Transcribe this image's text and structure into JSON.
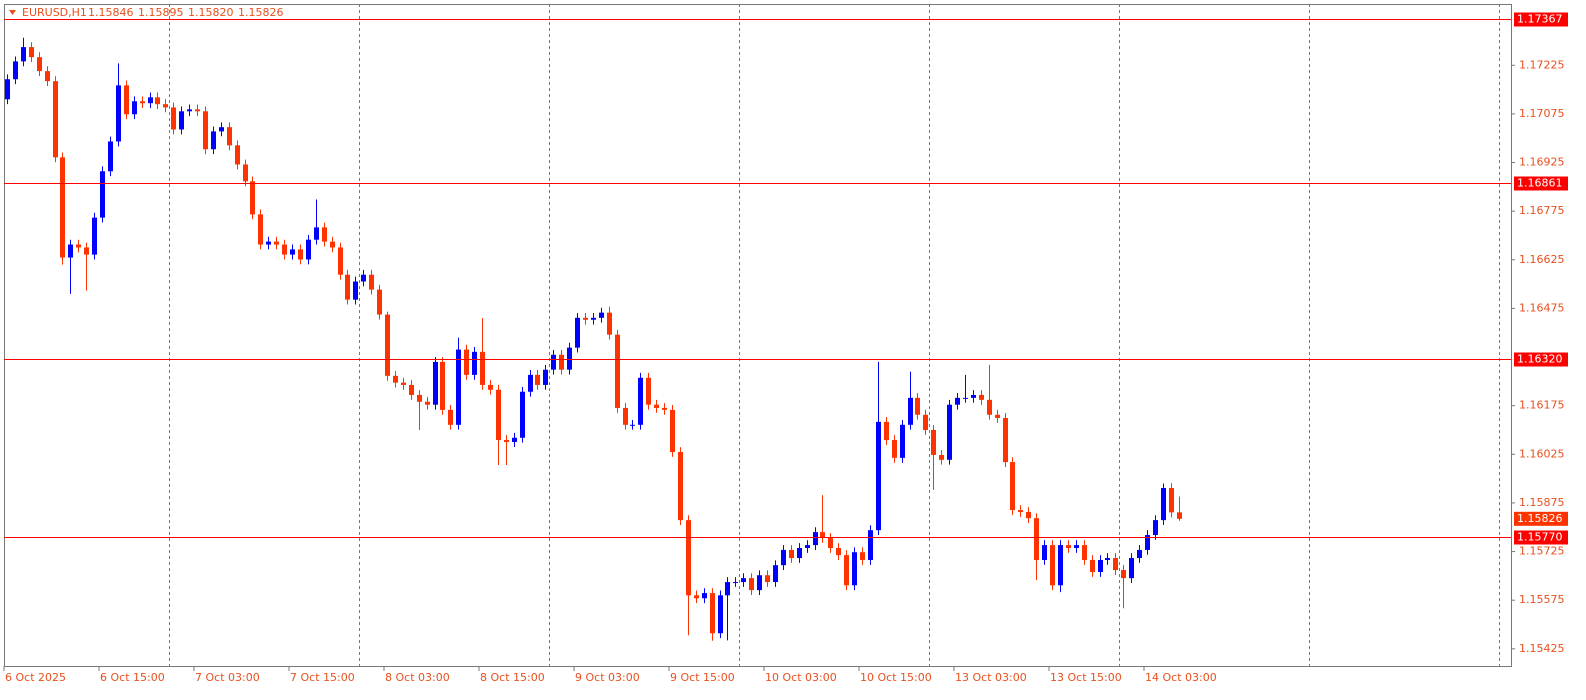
{
  "chart_data": {
    "type": "candlestick",
    "title": "EURUSD,H1",
    "title_values": [
      "1.15846",
      "1.15895",
      "1.15820",
      "1.15826"
    ],
    "up_color": "#0000ff",
    "down_color": "#ff3300",
    "level_color": "#ff0000",
    "ylim": [
      1.15372,
      1.17414
    ],
    "yticks": [
      1.17225,
      1.17075,
      1.16925,
      1.16775,
      1.16625,
      1.16475,
      1.16175,
      1.16025,
      1.15875,
      1.15725,
      1.15575,
      1.15425
    ],
    "levels": [
      1.17367,
      1.16861,
      {
        "value": 1.1632,
        "label": "1.16320"
      },
      {
        "value": 1.1577,
        "label": "1.15770"
      }
    ],
    "categories": [
      "6 Oct 2025",
      null,
      null,
      null,
      null,
      null,
      null,
      null,
      null,
      null,
      null,
      null,
      "6 Oct 15:00",
      null,
      null,
      null,
      null,
      null,
      null,
      null,
      null,
      null,
      null,
      null,
      "7 Oct 03:00",
      null,
      null,
      null,
      null,
      null,
      null,
      null,
      null,
      null,
      null,
      null,
      "7 Oct 15:00",
      null,
      null,
      null,
      null,
      null,
      null,
      null,
      null,
      null,
      null,
      null,
      "8 Oct 03:00",
      null,
      null,
      null,
      null,
      null,
      null,
      null,
      null,
      null,
      null,
      null,
      "8 Oct 15:00",
      null,
      null,
      null,
      null,
      null,
      null,
      null,
      null,
      null,
      null,
      null,
      "9 Oct 03:00",
      null,
      null,
      null,
      null,
      null,
      null,
      null,
      null,
      null,
      null,
      null,
      "9 Oct 15:00",
      null,
      null,
      null,
      null,
      null,
      null,
      null,
      null,
      null,
      null,
      null,
      "10 Oct 03:00",
      null,
      null,
      null,
      null,
      null,
      null,
      null,
      null,
      null,
      null,
      null,
      "10 Oct 15:00",
      null,
      null,
      null,
      null,
      null,
      null,
      null,
      null,
      null,
      null,
      null,
      "13 Oct 03:00",
      null,
      null,
      null,
      null,
      null,
      null,
      null,
      null,
      null,
      null,
      null,
      "13 Oct 15:00",
      null,
      null,
      null,
      null,
      null,
      null,
      null,
      null,
      null,
      null,
      null,
      "14 Oct 03:00",
      null,
      null,
      null,
      null
    ],
    "open": [
      1.1712,
      1.17182,
      1.17237,
      1.17281,
      1.1725,
      1.17207,
      1.17176,
      1.16941,
      1.16632,
      1.16672,
      1.16663,
      1.16641,
      1.16755,
      1.16898,
      1.1699,
      1.17163,
      1.17074,
      1.17114,
      1.17108,
      1.17126,
      1.17105,
      1.17095,
      1.17027,
      1.17083,
      1.17089,
      1.17083,
      1.16966,
      1.17021,
      1.17034,
      1.16978,
      1.16919,
      1.16867,
      1.16765,
      1.16672,
      1.16681,
      1.16672,
      1.16641,
      1.16657,
      1.16626,
      1.16687,
      1.16725,
      1.16681,
      1.16663,
      1.16579,
      1.16502,
      1.16558,
      1.16579,
      1.16533,
      1.16456,
      1.16267,
      1.16246,
      1.16239,
      1.16208,
      1.16187,
      1.16178,
      1.1631,
      1.16162,
      1.16116,
      1.16348,
      1.1627,
      1.16341,
      1.16239,
      1.16224,
      1.16069,
      1.16063,
      1.16076,
      1.16218,
      1.1627,
      1.16239,
      1.16286,
      1.16332,
      1.16286,
      1.16354,
      1.16446,
      1.1644,
      1.16446,
      1.16462,
      1.16394,
      1.16168,
      1.16116,
      1.16116,
      1.16261,
      1.16178,
      1.16168,
      1.16162,
      1.16032,
      1.15822,
      1.1559,
      1.15581,
      1.15597,
      1.15473,
      1.1559,
      1.15631,
      1.15631,
      1.15643,
      1.15606,
      1.15652,
      1.15631,
      1.15683,
      1.1573,
      1.15705,
      1.15736,
      1.15745,
      1.15785,
      1.15767,
      1.15736,
      1.15714,
      1.15621,
      1.15723,
      1.15699,
      1.15791,
      1.16125,
      1.16069,
      1.16014,
      1.16116,
      1.16199,
      1.16147,
      1.161,
      1.16023,
      1.16008,
      1.16178,
      1.16199,
      1.16199,
      1.16208,
      1.16193,
      1.16147,
      1.16137,
      1.16001,
      1.15853,
      1.15847,
      1.15828,
      1.15699,
      1.15745,
      1.15621,
      1.15745,
      1.15736,
      1.15745,
      1.15699,
      1.15662,
      1.15699,
      1.15705,
      1.15668,
      1.15643,
      1.15705,
      1.1573,
      1.15776,
      1.15822,
      1.15921,
      1.15846
    ],
    "high": [
      1.17197,
      1.17252,
      1.1731,
      1.17296,
      1.17265,
      1.17222,
      1.17191,
      1.16956,
      1.16687,
      1.16687,
      1.16678,
      1.1677,
      1.16913,
      1.17005,
      1.17231,
      1.17178,
      1.17129,
      1.17129,
      1.17141,
      1.17141,
      1.1712,
      1.1711,
      1.17098,
      1.17104,
      1.17104,
      1.17098,
      1.17036,
      1.17049,
      1.17049,
      1.16993,
      1.16934,
      1.16882,
      1.1678,
      1.16696,
      1.16696,
      1.16687,
      1.16672,
      1.16672,
      1.16702,
      1.16811,
      1.1674,
      1.16696,
      1.16678,
      1.16594,
      1.16573,
      1.16594,
      1.16594,
      1.16548,
      1.16465,
      1.16282,
      1.16261,
      1.16254,
      1.16223,
      1.16202,
      1.16325,
      1.16325,
      1.16177,
      1.16385,
      1.16363,
      1.16356,
      1.16445,
      1.16254,
      1.16239,
      1.16084,
      1.16091,
      1.16233,
      1.16285,
      1.16285,
      1.16301,
      1.16347,
      1.16347,
      1.16369,
      1.16461,
      1.16461,
      1.16461,
      1.16477,
      1.1648,
      1.16409,
      1.16183,
      1.16131,
      1.16276,
      1.16276,
      1.16193,
      1.16183,
      1.16177,
      1.16047,
      1.15837,
      1.15605,
      1.15612,
      1.15612,
      1.15605,
      1.15646,
      1.15646,
      1.15658,
      1.15658,
      1.15667,
      1.15667,
      1.15698,
      1.15745,
      1.15745,
      1.15751,
      1.1576,
      1.158,
      1.15899,
      1.15782,
      1.15751,
      1.15729,
      1.15738,
      1.15738,
      1.15806,
      1.1631,
      1.1614,
      1.16084,
      1.16131,
      1.1628,
      1.16214,
      1.16162,
      1.16115,
      1.16038,
      1.16193,
      1.16214,
      1.1627,
      1.16223,
      1.16223,
      1.16301,
      1.16162,
      1.16152,
      1.16016,
      1.15868,
      1.15862,
      1.15843,
      1.1576,
      1.1576,
      1.1576,
      1.1576,
      1.1576,
      1.1576,
      1.15714,
      1.15714,
      1.1572,
      1.1572,
      1.15683,
      1.1572,
      1.15745,
      1.15791,
      1.15837,
      1.15935,
      1.15936,
      1.15895
    ],
    "low": [
      1.17105,
      1.17167,
      1.17222,
      1.17235,
      1.17192,
      1.17161,
      1.16926,
      1.1661,
      1.1652,
      1.16648,
      1.1653,
      1.16626,
      1.1674,
      1.16883,
      1.16975,
      1.17059,
      1.17059,
      1.17093,
      1.17093,
      1.1709,
      1.1708,
      1.17012,
      1.17012,
      1.17068,
      1.17068,
      1.16951,
      1.16951,
      1.17006,
      1.16963,
      1.16904,
      1.16852,
      1.1675,
      1.16657,
      1.16657,
      1.16657,
      1.16626,
      1.16626,
      1.16611,
      1.16611,
      1.16672,
      1.16666,
      1.16648,
      1.16564,
      1.16487,
      1.16487,
      1.16543,
      1.16518,
      1.16441,
      1.16252,
      1.16231,
      1.16224,
      1.16193,
      1.161,
      1.16163,
      1.16163,
      1.16147,
      1.16101,
      1.16101,
      1.16255,
      1.16255,
      1.16224,
      1.16209,
      1.15992,
      1.15992,
      1.16048,
      1.16061,
      1.16203,
      1.16224,
      1.16224,
      1.16271,
      1.16271,
      1.16271,
      1.16339,
      1.16425,
      1.16425,
      1.16431,
      1.16379,
      1.16153,
      1.16101,
      1.16101,
      1.16101,
      1.16163,
      1.16153,
      1.16147,
      1.16017,
      1.15807,
      1.15467,
      1.15566,
      1.15566,
      1.1545,
      1.15458,
      1.15451,
      1.15616,
      1.15616,
      1.15591,
      1.15591,
      1.15616,
      1.15616,
      1.15668,
      1.1569,
      1.1569,
      1.15721,
      1.1573,
      1.15752,
      1.15721,
      1.15699,
      1.15606,
      1.15606,
      1.15684,
      1.15684,
      1.15776,
      1.16054,
      1.15999,
      1.15999,
      1.16101,
      1.16132,
      1.16085,
      1.15915,
      1.15993,
      1.15993,
      1.16163,
      1.16184,
      1.16184,
      1.16178,
      1.16132,
      1.16122,
      1.15986,
      1.15838,
      1.15832,
      1.15813,
      1.15637,
      1.15684,
      1.15606,
      1.156,
      1.15721,
      1.15721,
      1.15684,
      1.15647,
      1.15647,
      1.15684,
      1.15653,
      1.1555,
      1.15628,
      1.1569,
      1.15715,
      1.15761,
      1.15807,
      1.15831,
      1.1582
    ],
    "close": [
      1.17182,
      1.17237,
      1.17281,
      1.1725,
      1.17207,
      1.17176,
      1.16941,
      1.16632,
      1.16672,
      1.16663,
      1.16641,
      1.16755,
      1.16898,
      1.1699,
      1.17163,
      1.17074,
      1.17114,
      1.17108,
      1.17126,
      1.17105,
      1.17095,
      1.17027,
      1.17083,
      1.17089,
      1.17083,
      1.16966,
      1.17021,
      1.17034,
      1.16978,
      1.16919,
      1.16867,
      1.16765,
      1.16672,
      1.16681,
      1.16672,
      1.16641,
      1.16657,
      1.16626,
      1.16687,
      1.16725,
      1.16681,
      1.16663,
      1.16579,
      1.16502,
      1.16558,
      1.16579,
      1.16533,
      1.16456,
      1.16267,
      1.16246,
      1.16239,
      1.16208,
      1.16187,
      1.16178,
      1.1631,
      1.16162,
      1.16116,
      1.16348,
      1.1627,
      1.16341,
      1.16239,
      1.16224,
      1.16069,
      1.16063,
      1.16076,
      1.16218,
      1.1627,
      1.16239,
      1.16286,
      1.16332,
      1.16286,
      1.16354,
      1.16446,
      1.1644,
      1.16446,
      1.16462,
      1.16394,
      1.16168,
      1.16116,
      1.16116,
      1.16261,
      1.16178,
      1.16168,
      1.16162,
      1.16032,
      1.15822,
      1.1559,
      1.15581,
      1.15597,
      1.15473,
      1.1559,
      1.15631,
      1.15631,
      1.15643,
      1.15606,
      1.15652,
      1.15631,
      1.15683,
      1.1573,
      1.15705,
      1.15736,
      1.15745,
      1.15785,
      1.15767,
      1.15736,
      1.15714,
      1.15621,
      1.15723,
      1.15699,
      1.15791,
      1.16125,
      1.16069,
      1.16014,
      1.16116,
      1.16199,
      1.16147,
      1.161,
      1.16023,
      1.16008,
      1.16178,
      1.16199,
      1.16199,
      1.16208,
      1.16193,
      1.16147,
      1.16137,
      1.16001,
      1.15853,
      1.15847,
      1.15828,
      1.15699,
      1.15745,
      1.15621,
      1.15745,
      1.15736,
      1.15745,
      1.15699,
      1.15662,
      1.15699,
      1.15705,
      1.15668,
      1.15643,
      1.15705,
      1.1573,
      1.15776,
      1.15822,
      1.15921,
      1.15846,
      1.15826
    ]
  }
}
